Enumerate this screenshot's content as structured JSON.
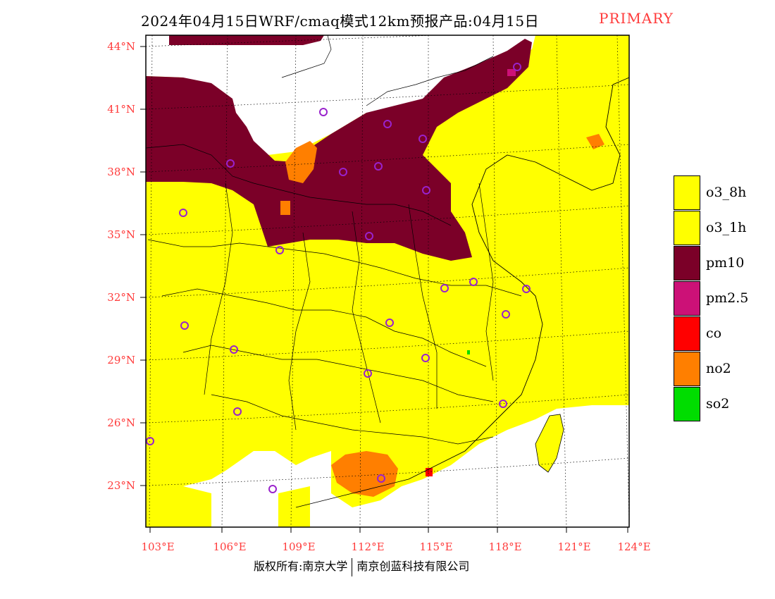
{
  "title": {
    "main": "2024年04月15日WRF/cmaq模式12km预报产品:04月15日",
    "tag": "PRIMARY"
  },
  "map": {
    "lat_labels": [
      "44°N",
      "41°N",
      "38°N",
      "35°N",
      "32°N",
      "29°N",
      "26°N",
      "23°N"
    ],
    "lon_labels": [
      "103°E",
      "106°E",
      "109°E",
      "112°E",
      "115°E",
      "118°E",
      "121°E",
      "124°E"
    ]
  },
  "legend": {
    "items": [
      {
        "label": "o3_8h",
        "color": "#ffff00"
      },
      {
        "label": "o3_1h",
        "color": "#ffff00"
      },
      {
        "label": "pm10",
        "color": "#7b0028"
      },
      {
        "label": "pm2.5",
        "color": "#cc1177"
      },
      {
        "label": "co",
        "color": "#ff0000"
      },
      {
        "label": "no2",
        "color": "#ff7f00"
      },
      {
        "label": "so2",
        "color": "#00dd00"
      }
    ]
  },
  "footer": {
    "left": "版权所有:南京大学",
    "right": "南京创蓝科技有限公司"
  }
}
